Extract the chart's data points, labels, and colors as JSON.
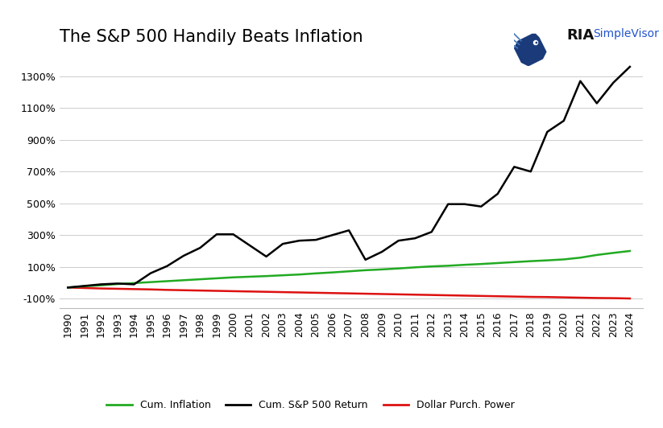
{
  "title": "The S&P 500 Handily Beats Inflation",
  "years": [
    1990,
    1991,
    1992,
    1993,
    1994,
    1995,
    1996,
    1997,
    1998,
    1999,
    2000,
    2001,
    2002,
    2003,
    2004,
    2005,
    2006,
    2007,
    2008,
    2009,
    2010,
    2011,
    2012,
    2013,
    2014,
    2015,
    2016,
    2017,
    2018,
    2019,
    2020,
    2021,
    2022,
    2023,
    2024
  ],
  "sp500": [
    -30,
    -20,
    -10,
    -5,
    -10,
    60,
    105,
    170,
    220,
    305,
    305,
    235,
    165,
    245,
    265,
    270,
    300,
    330,
    145,
    195,
    265,
    280,
    320,
    495,
    495,
    480,
    560,
    730,
    700,
    950,
    1020,
    1270,
    1130,
    1260,
    1360
  ],
  "inflation": [
    -30,
    -22,
    -16,
    -8,
    -2,
    4,
    10,
    16,
    22,
    28,
    34,
    38,
    42,
    47,
    52,
    59,
    65,
    72,
    79,
    84,
    90,
    97,
    103,
    107,
    113,
    118,
    124,
    130,
    136,
    141,
    147,
    158,
    175,
    188,
    200
  ],
  "dollar_power": [
    -30,
    -33,
    -36,
    -38,
    -40,
    -42,
    -45,
    -47,
    -49,
    -51,
    -53,
    -55,
    -57,
    -59,
    -61,
    -63,
    -65,
    -67,
    -69,
    -71,
    -73,
    -75,
    -77,
    -79,
    -81,
    -83,
    -85,
    -87,
    -89,
    -90,
    -92,
    -94,
    -96,
    -97,
    -99
  ],
  "sp500_color": "#000000",
  "inflation_color": "#22aa22",
  "dollar_power_color": "#dd1111",
  "bg_color": "#ffffff",
  "grid_color": "#cccccc",
  "yticks": [
    -100,
    100,
    300,
    500,
    700,
    900,
    1100,
    1300
  ],
  "ylim": [
    -160,
    1430
  ],
  "legend_labels": [
    "Cum. Inflation",
    "Cum. S&P 500 Return",
    "Dollar Purch. Power"
  ],
  "title_fontsize": 15,
  "tick_fontsize": 9,
  "legend_fontsize": 9
}
